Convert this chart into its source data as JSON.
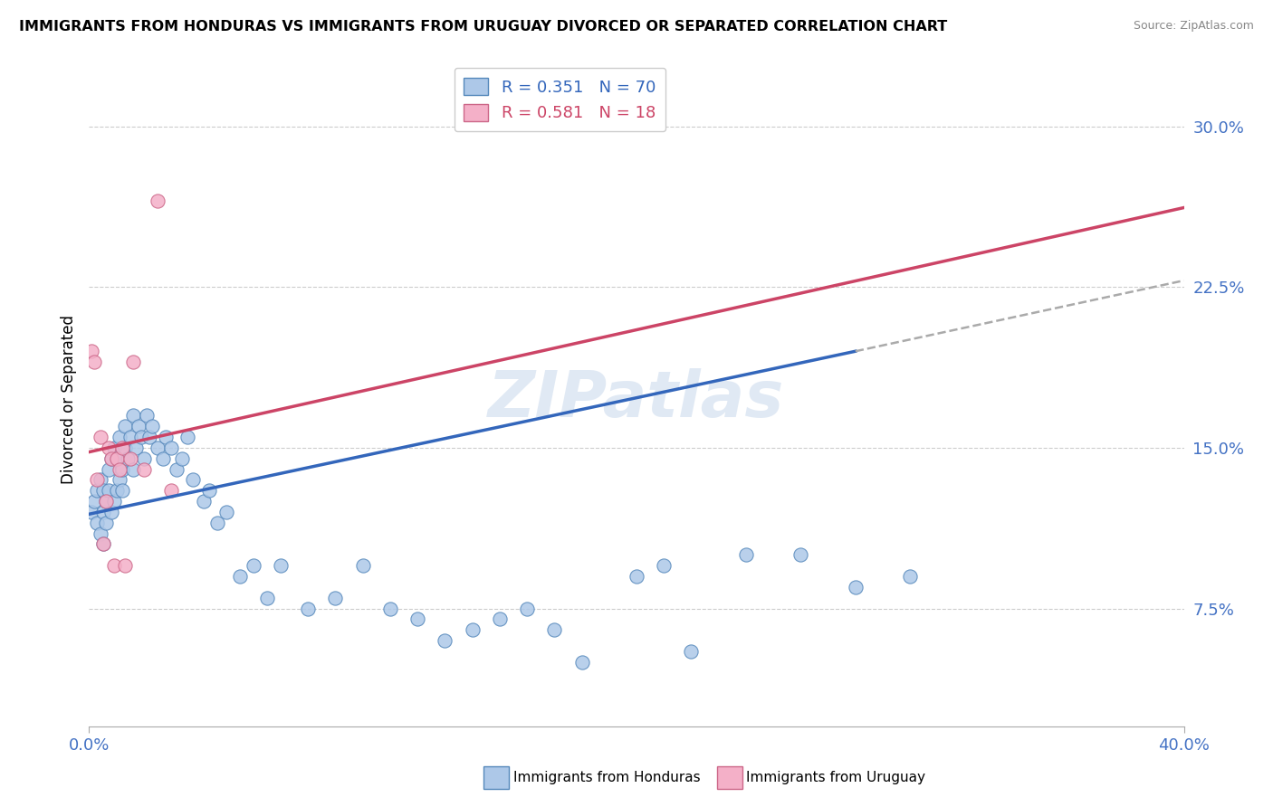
{
  "title": "IMMIGRANTS FROM HONDURAS VS IMMIGRANTS FROM URUGUAY DIVORCED OR SEPARATED CORRELATION CHART",
  "source": "Source: ZipAtlas.com",
  "ylabel": "Divorced or Separated",
  "ytick_vals": [
    0.075,
    0.15,
    0.225,
    0.3
  ],
  "ytick_labels": [
    "7.5%",
    "15.0%",
    "22.5%",
    "30.0%"
  ],
  "xlim": [
    0.0,
    0.4
  ],
  "ylim": [
    0.02,
    0.325
  ],
  "honduras_fill": "#adc8e8",
  "honduras_edge": "#5588bb",
  "uruguay_fill": "#f4b0c8",
  "uruguay_edge": "#cc6688",
  "honduras_line_color": "#3366bb",
  "uruguay_line_color": "#cc4466",
  "grid_color": "#cccccc",
  "watermark": "ZIPatlas",
  "honduras_x": [
    0.001,
    0.002,
    0.003,
    0.003,
    0.004,
    0.004,
    0.005,
    0.005,
    0.005,
    0.006,
    0.006,
    0.007,
    0.007,
    0.008,
    0.008,
    0.009,
    0.009,
    0.01,
    0.01,
    0.011,
    0.011,
    0.012,
    0.012,
    0.013,
    0.013,
    0.014,
    0.015,
    0.016,
    0.016,
    0.017,
    0.018,
    0.019,
    0.02,
    0.021,
    0.022,
    0.023,
    0.025,
    0.027,
    0.028,
    0.03,
    0.032,
    0.034,
    0.036,
    0.038,
    0.042,
    0.044,
    0.047,
    0.05,
    0.055,
    0.06,
    0.065,
    0.07,
    0.08,
    0.09,
    0.1,
    0.11,
    0.12,
    0.13,
    0.14,
    0.15,
    0.16,
    0.17,
    0.18,
    0.2,
    0.21,
    0.22,
    0.24,
    0.26,
    0.28,
    0.3
  ],
  "honduras_y": [
    0.12,
    0.125,
    0.115,
    0.13,
    0.11,
    0.135,
    0.12,
    0.105,
    0.13,
    0.115,
    0.125,
    0.13,
    0.14,
    0.12,
    0.145,
    0.125,
    0.15,
    0.13,
    0.145,
    0.135,
    0.155,
    0.14,
    0.13,
    0.15,
    0.16,
    0.145,
    0.155,
    0.14,
    0.165,
    0.15,
    0.16,
    0.155,
    0.145,
    0.165,
    0.155,
    0.16,
    0.15,
    0.145,
    0.155,
    0.15,
    0.14,
    0.145,
    0.155,
    0.135,
    0.125,
    0.13,
    0.115,
    0.12,
    0.09,
    0.095,
    0.08,
    0.095,
    0.075,
    0.08,
    0.095,
    0.075,
    0.07,
    0.06,
    0.065,
    0.07,
    0.075,
    0.065,
    0.05,
    0.09,
    0.095,
    0.055,
    0.1,
    0.1,
    0.085,
    0.09
  ],
  "uruguay_x": [
    0.001,
    0.002,
    0.003,
    0.004,
    0.005,
    0.006,
    0.007,
    0.008,
    0.009,
    0.01,
    0.011,
    0.012,
    0.013,
    0.015,
    0.016,
    0.02,
    0.025,
    0.03
  ],
  "uruguay_y": [
    0.195,
    0.19,
    0.135,
    0.155,
    0.105,
    0.125,
    0.15,
    0.145,
    0.095,
    0.145,
    0.14,
    0.15,
    0.095,
    0.145,
    0.19,
    0.14,
    0.265,
    0.13
  ],
  "hon_line_x0": 0.0,
  "hon_line_y0": 0.119,
  "hon_line_x1": 0.28,
  "hon_line_y1": 0.195,
  "uru_line_x0": 0.0,
  "uru_line_y0": 0.148,
  "uru_line_x1": 0.4,
  "uru_line_y1": 0.262,
  "dash_line_x0": 0.28,
  "dash_line_y0": 0.195,
  "dash_line_x1": 0.4,
  "dash_line_y1": 0.228
}
